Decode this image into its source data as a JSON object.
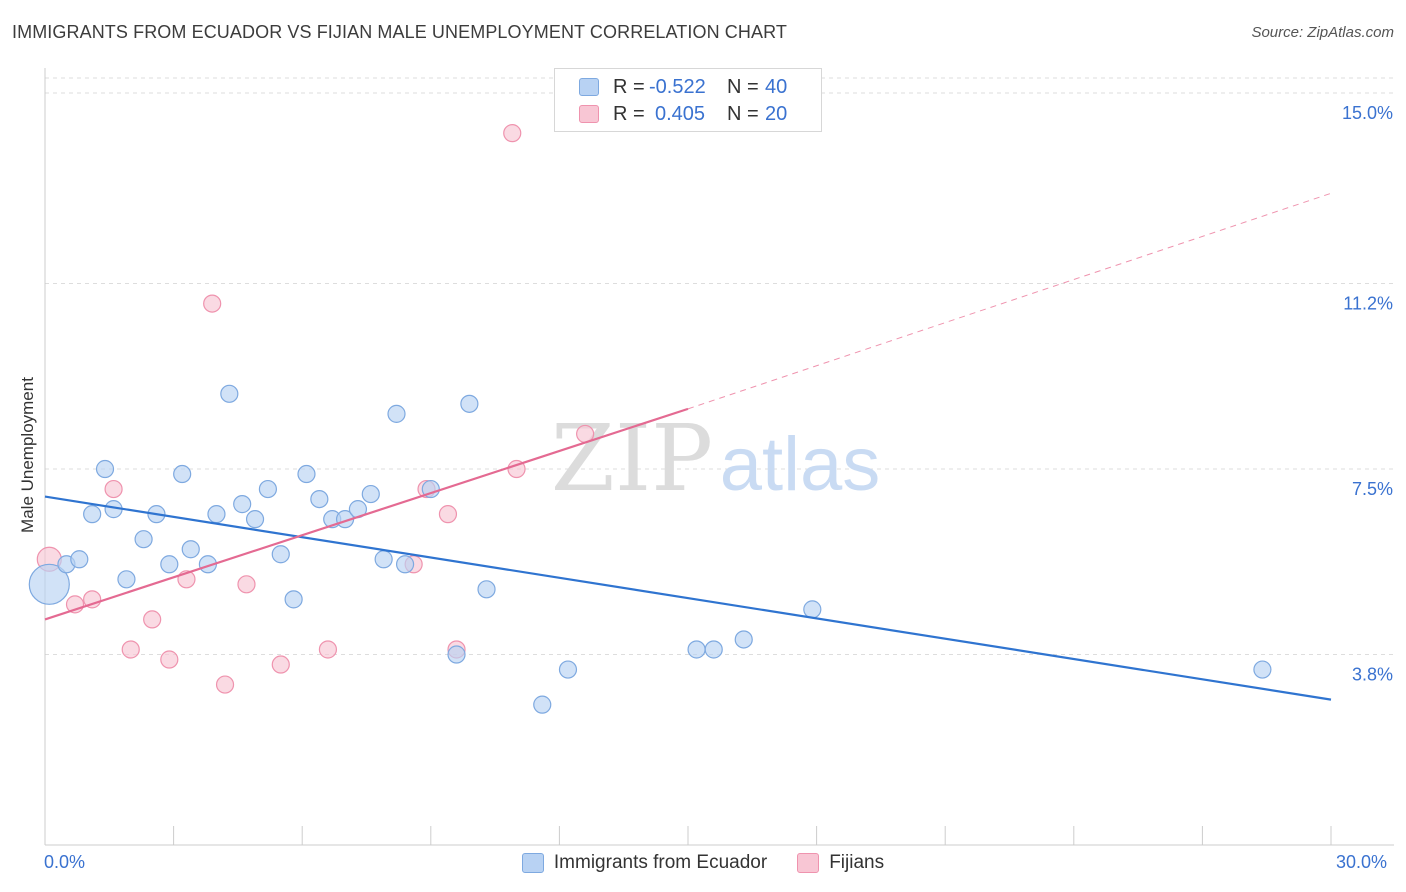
{
  "header": {
    "title": "IMMIGRANTS FROM ECUADOR VS FIJIAN MALE UNEMPLOYMENT CORRELATION CHART",
    "source": "Source: ZipAtlas.com"
  },
  "colors": {
    "blue_fill": "#b8d2f3",
    "blue_stroke": "#7ea9e0",
    "blue_line": "#2f74d0",
    "pink_fill": "#f8c6d4",
    "pink_stroke": "#ef93ae",
    "pink_line": "#e46a92",
    "value_text": "#3a72d0",
    "grid": "#dddddd"
  },
  "legend": {
    "rows": [
      {
        "r_label": "R =",
        "r_value": "-0.522",
        "n_label": "N =",
        "n_value": "40"
      },
      {
        "r_label": "R =",
        "r_value": "0.405",
        "n_label": "N =",
        "n_value": "20"
      }
    ]
  },
  "watermark": {
    "zip": "ZIP",
    "atlas": "atlas"
  },
  "chart_data": {
    "type": "scatter",
    "title": "IMMIGRANTS FROM ECUADOR VS FIJIAN MALE UNEMPLOYMENT CORRELATION CHART",
    "xlabel": "",
    "ylabel": "Male Unemployment",
    "xlim": [
      0,
      30
    ],
    "ylim": [
      0,
      15.3
    ],
    "x_tick_labels": [
      "0.0%",
      "30.0%"
    ],
    "y_ticks": [
      3.8,
      7.5,
      11.2,
      15.0
    ],
    "y_tick_labels": [
      "3.8%",
      "7.5%",
      "11.2%",
      "15.0%"
    ],
    "grid": "horizontal dashed",
    "legend_position": "top-center and bottom",
    "series": [
      {
        "name": "Immigrants from Ecuador",
        "color": "#b8d2f3",
        "points": [
          [
            0.1,
            5.2
          ],
          [
            0.5,
            5.6
          ],
          [
            0.8,
            5.7
          ],
          [
            1.1,
            6.6
          ],
          [
            1.4,
            7.5
          ],
          [
            1.6,
            6.7
          ],
          [
            1.9,
            5.3
          ],
          [
            2.3,
            6.1
          ],
          [
            2.6,
            6.6
          ],
          [
            2.9,
            5.6
          ],
          [
            3.2,
            7.4
          ],
          [
            3.4,
            5.9
          ],
          [
            3.8,
            5.6
          ],
          [
            4.0,
            6.6
          ],
          [
            4.3,
            9.0
          ],
          [
            4.6,
            6.8
          ],
          [
            4.9,
            6.5
          ],
          [
            5.2,
            7.1
          ],
          [
            5.5,
            5.8
          ],
          [
            5.8,
            4.9
          ],
          [
            6.1,
            7.4
          ],
          [
            6.4,
            6.9
          ],
          [
            6.7,
            6.5
          ],
          [
            7.0,
            6.5
          ],
          [
            7.3,
            6.7
          ],
          [
            7.6,
            7.0
          ],
          [
            7.9,
            5.7
          ],
          [
            8.2,
            8.6
          ],
          [
            8.4,
            5.6
          ],
          [
            9.0,
            7.1
          ],
          [
            9.6,
            3.8
          ],
          [
            9.9,
            8.8
          ],
          [
            10.3,
            5.1
          ],
          [
            11.6,
            2.8
          ],
          [
            12.2,
            3.5
          ],
          [
            15.2,
            3.9
          ],
          [
            15.6,
            3.9
          ],
          [
            16.3,
            4.1
          ],
          [
            17.9,
            4.7
          ],
          [
            28.4,
            3.5
          ]
        ],
        "trend": {
          "x": [
            0,
            30
          ],
          "y": [
            6.95,
            2.9
          ]
        }
      },
      {
        "name": "Fijians",
        "color": "#f8c6d4",
        "points": [
          [
            0.1,
            5.7
          ],
          [
            0.7,
            4.8
          ],
          [
            1.1,
            4.9
          ],
          [
            1.6,
            7.1
          ],
          [
            2.0,
            3.9
          ],
          [
            2.5,
            4.5
          ],
          [
            2.9,
            3.7
          ],
          [
            3.3,
            5.3
          ],
          [
            3.9,
            10.8
          ],
          [
            4.2,
            3.2
          ],
          [
            4.7,
            5.2
          ],
          [
            5.5,
            3.6
          ],
          [
            6.6,
            3.9
          ],
          [
            8.6,
            5.6
          ],
          [
            8.9,
            7.1
          ],
          [
            9.4,
            6.6
          ],
          [
            9.6,
            3.9
          ],
          [
            10.9,
            14.2
          ],
          [
            11.0,
            7.5
          ],
          [
            12.6,
            8.2
          ]
        ],
        "trend": {
          "x": [
            0,
            15
          ],
          "y": [
            4.5,
            8.7
          ]
        },
        "trend_extension": {
          "x": [
            15,
            30
          ],
          "y": [
            8.7,
            13.0
          ]
        }
      }
    ]
  },
  "bottom_legend": {
    "items": [
      {
        "label": "Immigrants from Ecuador"
      },
      {
        "label": "Fijians"
      }
    ]
  }
}
